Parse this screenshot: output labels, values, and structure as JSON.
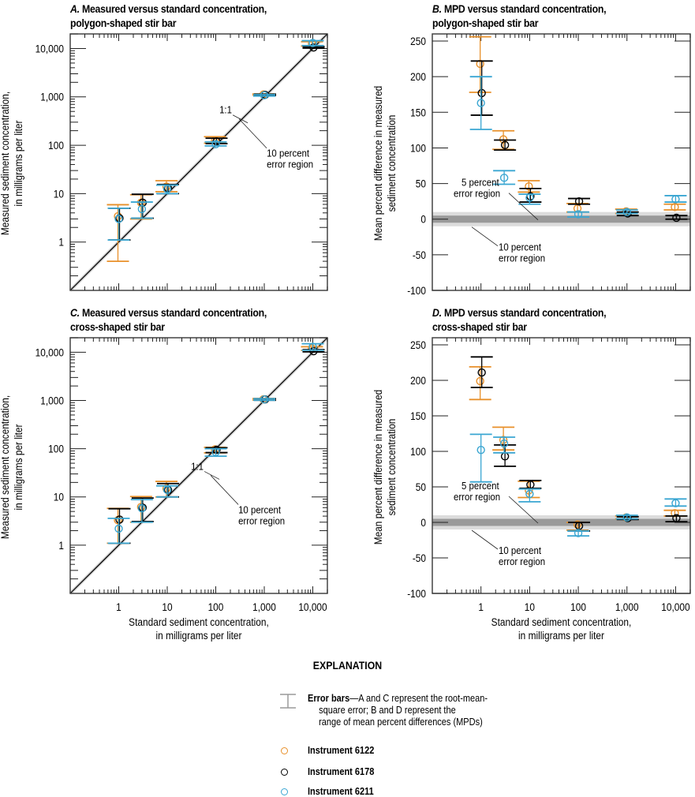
{
  "colors": {
    "inst6122": "#e8902a",
    "inst6178": "#000000",
    "inst6211": "#3aa6d2",
    "band5": "#9a9a9a",
    "band10": "#dcdcdc",
    "axis": "#000000"
  },
  "legend": {
    "title": "EXPLANATION",
    "error_bars_label": "Error bars",
    "error_bars_desc_line1": "—A and C represent the root-mean-",
    "error_bars_desc_line2": "square error; B and D represent the",
    "error_bars_desc_line3": "range of mean percent differences (MPDs)",
    "items": [
      {
        "label": "Instrument 6122",
        "color": "#e8902a"
      },
      {
        "label": "Instrument 6178",
        "color": "#000000"
      },
      {
        "label": "Instrument 6211",
        "color": "#3aa6d2"
      }
    ]
  },
  "chart_data": [
    {
      "id": "A",
      "type": "scatter",
      "letter": "A.",
      "title_line1": "Measured versus standard concentration,",
      "title_line2": "polygon-shaped stir bar",
      "xlabel_line1": "",
      "xlabel_line2": "",
      "ylabel_line1": "Measured sediment concentration,",
      "ylabel_line2": "in milligrams per liter",
      "xscale": "log",
      "yscale": "log",
      "xlim": [
        0.1,
        20000
      ],
      "ylim": [
        0.1,
        20000
      ],
      "yticks": [
        1,
        10,
        100,
        1000,
        10000
      ],
      "ytick_labels": [
        "1",
        "10",
        "100",
        "1,000",
        "10,000"
      ],
      "xticks": [
        1,
        10,
        100,
        1000,
        10000
      ],
      "xtick_labels": [],
      "annotations": [
        "1:1",
        "10 percent",
        "error region"
      ],
      "reference_line": "1:1",
      "x": [
        1,
        3,
        10,
        100,
        1000,
        10000
      ],
      "series": [
        {
          "name": "Instrument 6122",
          "y": [
            3.4,
            6.5,
            14,
            125,
            1120,
            12500
          ],
          "err_low": [
            3.0,
            3.5,
            3.0,
            15,
            30,
            1300
          ],
          "err_high": [
            2.5,
            3.0,
            4.5,
            25,
            30,
            1300
          ]
        },
        {
          "name": "Instrument 6178",
          "y": [
            3.1,
            6.5,
            13,
            120,
            1100,
            10500
          ],
          "err_low": [
            2.0,
            3.4,
            3.0,
            12,
            30,
            300
          ],
          "err_high": [
            1.9,
            3.2,
            2.5,
            20,
            40,
            500
          ]
        },
        {
          "name": "Instrument 6211",
          "y": [
            3.0,
            4.8,
            12.5,
            105,
            1080,
            13000
          ],
          "err_low": [
            1.9,
            1.7,
            2.5,
            8,
            40,
            1500
          ],
          "err_high": [
            2.0,
            1.9,
            2.5,
            12,
            40,
            1500
          ]
        }
      ]
    },
    {
      "id": "B",
      "type": "scatter",
      "letter": "B.",
      "title_line1": "MPD versus standard concentration,",
      "title_line2": "polygon-shaped stir bar",
      "xlabel_line1": "",
      "xlabel_line2": "",
      "ylabel_line1": "Mean percent difference in measured",
      "ylabel_line2": "sediment concentration",
      "xscale": "log",
      "yscale": "linear",
      "xlim": [
        0.1,
        20000
      ],
      "ylim": [
        -100,
        260
      ],
      "yticks": [
        -100,
        -50,
        0,
        50,
        100,
        150,
        200,
        250
      ],
      "ytick_labels": [
        "-100",
        "-50",
        "0",
        "50",
        "100",
        "150",
        "200",
        "250"
      ],
      "xticks": [
        1,
        10,
        100,
        1000,
        10000
      ],
      "xtick_labels": [],
      "annotations": [
        "5 percent",
        "error region",
        "10 percent",
        "error region"
      ],
      "bands": [
        5,
        10
      ],
      "x": [
        1,
        3,
        10,
        100,
        1000,
        10000
      ],
      "series": [
        {
          "name": "Instrument 6122",
          "y": [
            218,
            112,
            46,
            15,
            11,
            17
          ],
          "lo": [
            178,
            98,
            38,
            10,
            8,
            13
          ],
          "hi": [
            256,
            124,
            54,
            22,
            14,
            21
          ]
        },
        {
          "name": "Instrument 6178",
          "y": [
            177,
            104,
            32,
            25,
            8,
            2
          ],
          "lo": [
            146,
            97,
            24,
            21,
            5,
            0
          ],
          "hi": [
            222,
            111,
            43,
            29,
            10,
            5
          ]
        },
        {
          "name": "Instrument 6211",
          "y": [
            163,
            58,
            30,
            7,
            10,
            28
          ],
          "lo": [
            126,
            49,
            21,
            3,
            8,
            24
          ],
          "hi": [
            200,
            68,
            35,
            10,
            13,
            33
          ]
        }
      ]
    },
    {
      "id": "C",
      "type": "scatter",
      "letter": "C.",
      "title_line1": "Measured versus standard concentration,",
      "title_line2": "cross-shaped stir bar",
      "xlabel_line1": "Standard sediment concentration,",
      "xlabel_line2": "in milligrams per liter",
      "ylabel_line1": "Measured sediment concentration,",
      "ylabel_line2": "in milligrams per liter",
      "xscale": "log",
      "yscale": "log",
      "xlim": [
        0.1,
        20000
      ],
      "ylim": [
        0.1,
        20000
      ],
      "yticks": [
        1,
        10,
        100,
        1000,
        10000
      ],
      "ytick_labels": [
        "1",
        "10",
        "100",
        "1,000",
        "10,000"
      ],
      "xticks": [
        1,
        10,
        100,
        1000,
        10000
      ],
      "xtick_labels": [
        "1",
        "10",
        "100",
        "1,000",
        "10,000"
      ],
      "annotations": [
        "1:1",
        "10 percent",
        "error region"
      ],
      "reference_line": "1:1",
      "x": [
        1,
        3,
        10,
        100,
        1000,
        10000
      ],
      "series": [
        {
          "name": "Instrument 6122",
          "y": [
            3.3,
            6.2,
            15,
            97,
            1060,
            12000
          ],
          "err_low": [
            2.2,
            3.2,
            5.0,
            15,
            40,
            1000
          ],
          "err_high": [
            2.5,
            4.0,
            6.0,
            10,
            40,
            1000
          ]
        },
        {
          "name": "Instrument 6178",
          "y": [
            3.4,
            6.0,
            14,
            95,
            1050,
            10500
          ],
          "err_low": [
            2.3,
            2.9,
            4.0,
            12,
            40,
            300
          ],
          "err_high": [
            2.3,
            3.5,
            5.0,
            10,
            40,
            800
          ]
        },
        {
          "name": "Instrument 6211",
          "y": [
            2.2,
            5.8,
            14,
            85,
            1050,
            13000
          ],
          "err_low": [
            1.1,
            2.8,
            4.0,
            15,
            40,
            2000
          ],
          "err_high": [
            1.4,
            3.0,
            3.0,
            15,
            40,
            2000
          ]
        }
      ]
    },
    {
      "id": "D",
      "type": "scatter",
      "letter": "D.",
      "title_line1": "MPD versus standard concentration,",
      "title_line2": "cross-shaped stir bar",
      "xlabel_line1": "Standard sediment concentration,",
      "xlabel_line2": "in milligrams per liter",
      "ylabel_line1": "Mean percent difference in measured",
      "ylabel_line2": "sediment concentration",
      "xscale": "log",
      "yscale": "linear",
      "xlim": [
        0.1,
        20000
      ],
      "ylim": [
        -100,
        260
      ],
      "yticks": [
        -100,
        -50,
        0,
        50,
        100,
        150,
        200,
        250
      ],
      "ytick_labels": [
        "-100",
        "-50",
        "0",
        "50",
        "100",
        "150",
        "200",
        "250"
      ],
      "xticks": [
        1,
        10,
        100,
        1000,
        10000
      ],
      "xtick_labels": [
        "1",
        "10",
        "100",
        "1,000",
        "10,000"
      ],
      "annotations": [
        "5 percent",
        "error region",
        "10 percent",
        "error region"
      ],
      "bands": [
        5,
        10
      ],
      "x": [
        1,
        3,
        10,
        100,
        1000,
        10000
      ],
      "series": [
        {
          "name": "Instrument 6122",
          "y": [
            199,
            116,
            45,
            -3,
            7,
            13
          ],
          "lo": [
            173,
            102,
            35,
            -11,
            5,
            9
          ],
          "hi": [
            219,
            134,
            58,
            0,
            9,
            17
          ]
        },
        {
          "name": "Instrument 6178",
          "y": [
            211,
            93,
            53,
            -5,
            6,
            6
          ],
          "lo": [
            190,
            79,
            48,
            -12,
            4,
            1
          ],
          "hi": [
            233,
            109,
            59,
            0,
            8,
            9
          ]
        },
        {
          "name": "Instrument 6211",
          "y": [
            102,
            111,
            40,
            -15,
            7,
            27
          ],
          "lo": [
            57,
            98,
            29,
            -19,
            5,
            23
          ],
          "hi": [
            124,
            120,
            47,
            -12,
            10,
            33
          ]
        }
      ]
    }
  ]
}
